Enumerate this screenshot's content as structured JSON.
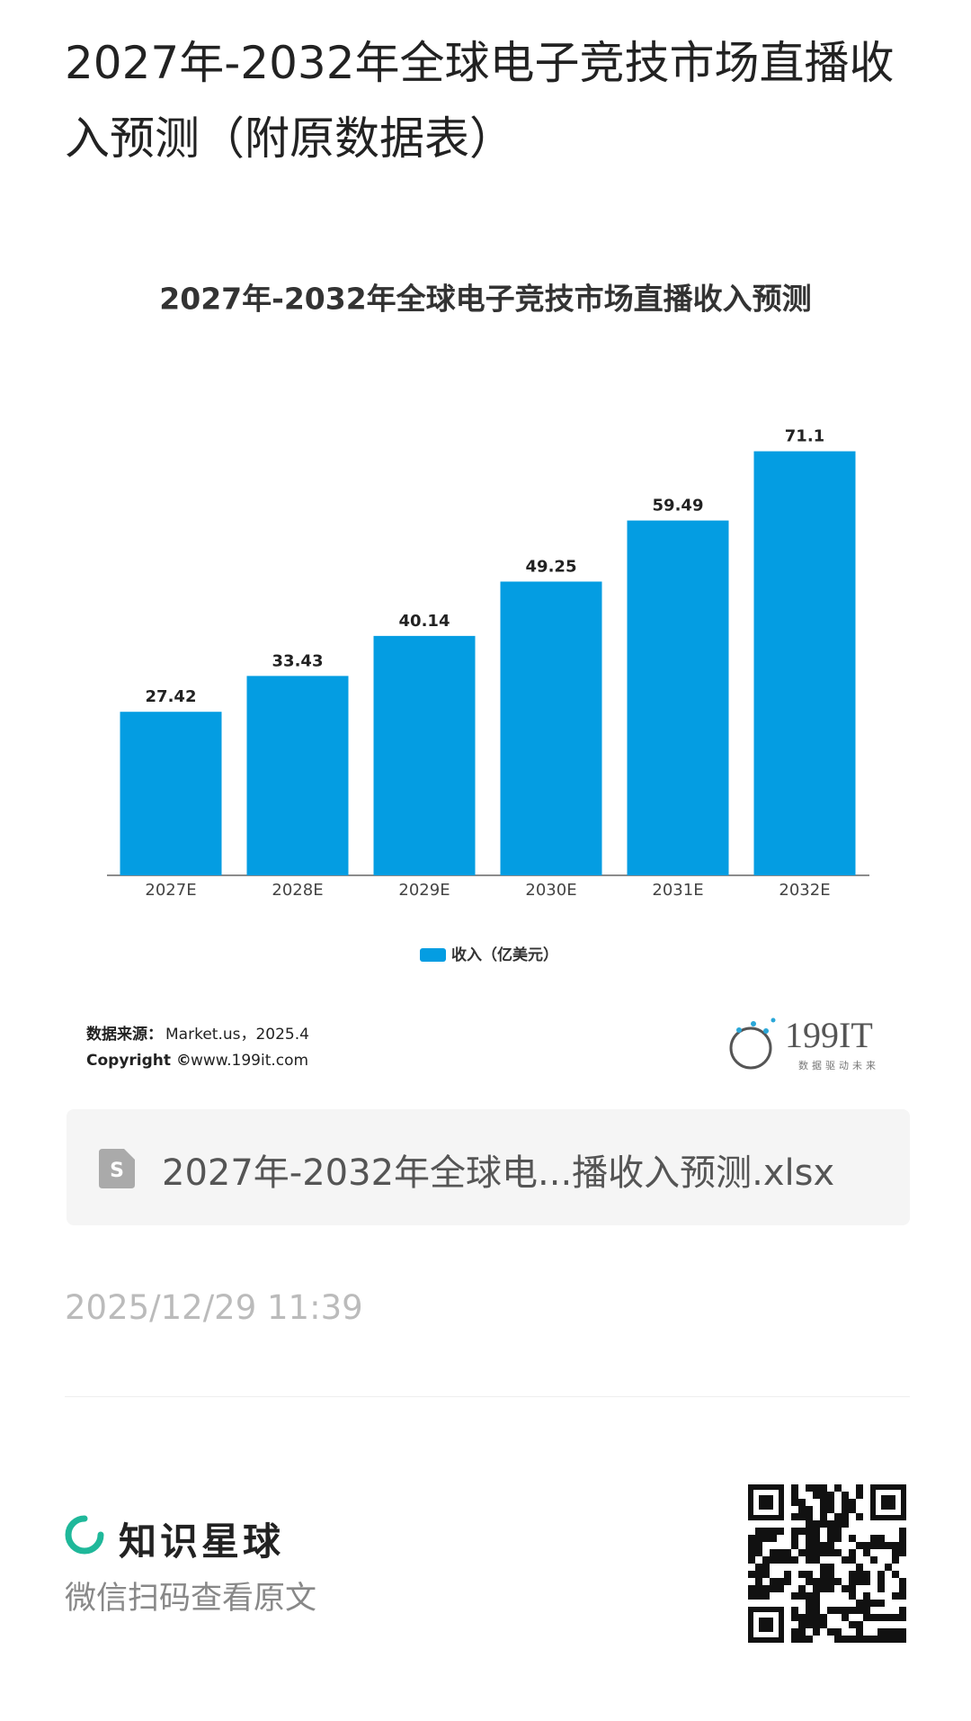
{
  "header": {
    "title": "2027年-2032年全球电子竞技市场直播收入预测（附原数据表）"
  },
  "chart_data": {
    "type": "bar",
    "title": "2027年-2032年全球电子竞技市场直播收入预测",
    "categories": [
      "2027E",
      "2028E",
      "2029E",
      "2030E",
      "2031E",
      "2032E"
    ],
    "series": [
      {
        "name": "收入（亿美元）",
        "color": "#049de2",
        "values": [
          27.42,
          33.43,
          40.14,
          49.25,
          59.49,
          71.1
        ]
      }
    ]
  },
  "source": {
    "label": "数据来源：",
    "text": "Market.us，2025.4",
    "copyright_label": "Copyright ©",
    "copyright_text": "www.199it.com"
  },
  "logo": {
    "name": "199IT",
    "slogan": "数据驱动未来"
  },
  "attachment": {
    "file_name": "2027年-2032年全球电...播收入预测.xlsx"
  },
  "post": {
    "date": "2025/12/29 11:39"
  },
  "footer": {
    "brand": "知识星球",
    "hint": "微信扫码查看原文"
  }
}
